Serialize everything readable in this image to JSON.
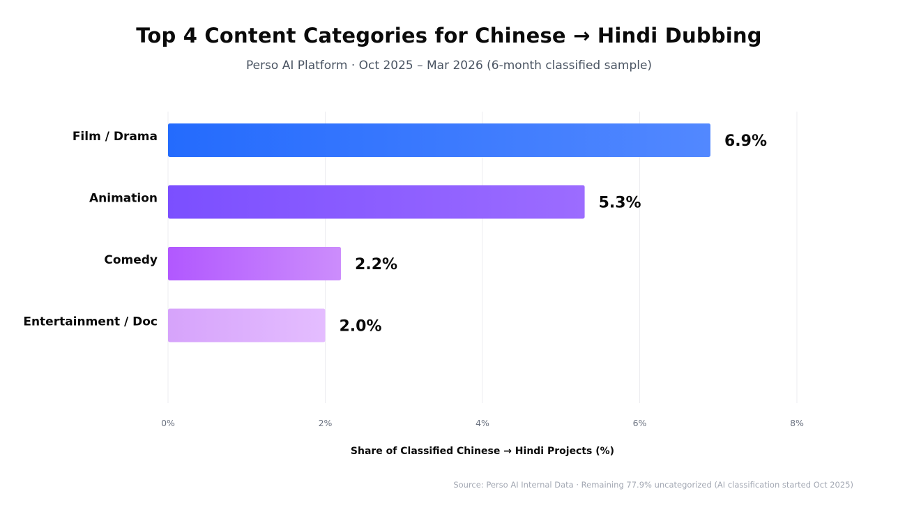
{
  "title": "Top 4 Content Categories for Chinese → Hindi Dubbing",
  "subtitle": "Perso AI Platform · Oct 2025 – Mar 2026 (6-month classified sample)",
  "source": "Source: Perso AI Internal Data · Remaining 77.9% uncategorized (AI classification started Oct 2025)",
  "chart_data": {
    "type": "bar",
    "orientation": "horizontal",
    "categories": [
      "Film / Drama",
      "Animation",
      "Comedy",
      "Entertainment / Doc"
    ],
    "values": [
      6.9,
      5.3,
      2.2,
      2.0
    ],
    "value_labels": [
      "6.9%",
      "5.3%",
      "2.2%",
      "2.0%"
    ],
    "xlabel": "Share of Classified Chinese → Hindi Projects (%)",
    "xlim": [
      0,
      8
    ],
    "xticks": [
      0,
      2,
      4,
      6,
      8
    ],
    "xtick_labels": [
      "0%",
      "2%",
      "4%",
      "6%",
      "8%"
    ],
    "grid": "vertical",
    "legend": "none",
    "colors": [
      [
        "#246bfd",
        "#5288ff"
      ],
      [
        "#7b4fff",
        "#9c6cff"
      ],
      [
        "#b158ff",
        "#cc8dfc"
      ],
      [
        "#d6a3fb",
        "#e4bdff"
      ]
    ],
    "grid_color": "#ececf0",
    "label_color": "#0a0a0a",
    "tick_color": "#6b7280"
  }
}
